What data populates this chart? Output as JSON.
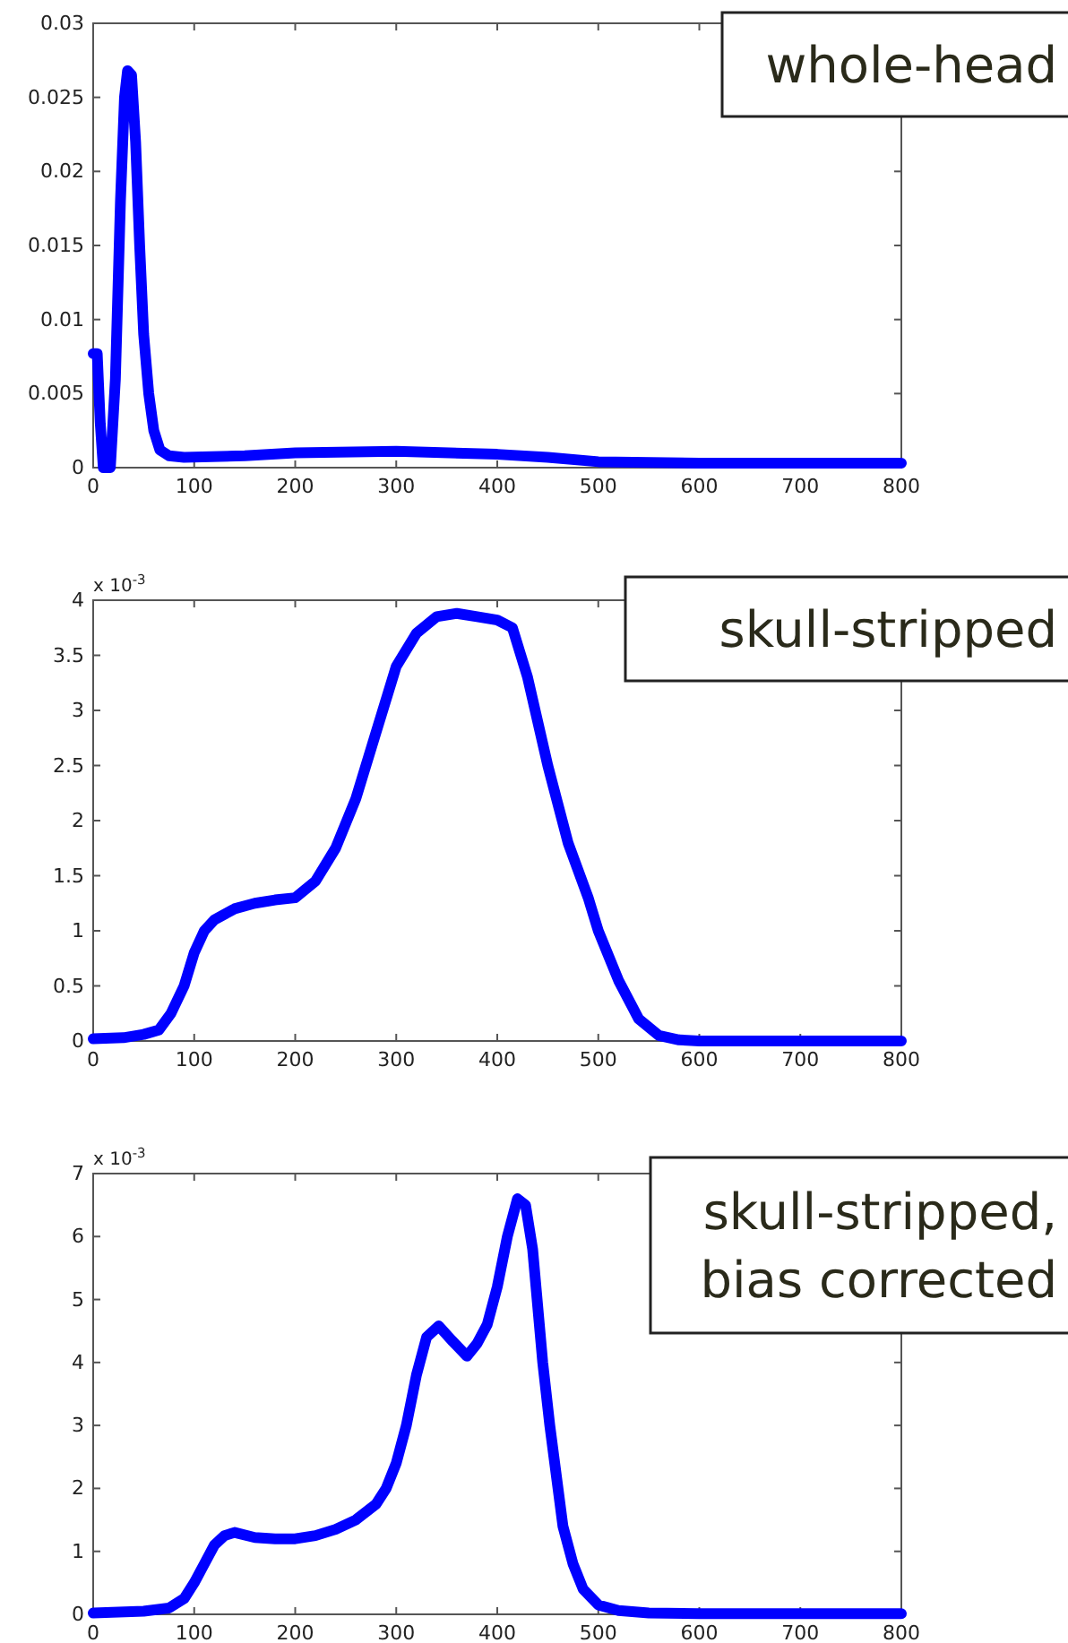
{
  "chart_data": [
    {
      "type": "line",
      "title": "whole-head",
      "xlim": [
        0,
        800
      ],
      "xticks": [
        0,
        100,
        200,
        300,
        400,
        500,
        600,
        700,
        800
      ],
      "ylim": [
        0,
        0.03
      ],
      "yticks": [
        0,
        0.005,
        0.01,
        0.015,
        0.02,
        0.025,
        0.03
      ],
      "series": [
        {
          "color": "#0000ff",
          "x": [
            0,
            4,
            7,
            10,
            17,
            22,
            27,
            31,
            34,
            38,
            42,
            46,
            50,
            55,
            60,
            66,
            75,
            90,
            150,
            200,
            300,
            400,
            450,
            500,
            600,
            800
          ],
          "values": [
            0.0077,
            0.0077,
            0.003,
            0,
            0,
            0.006,
            0.018,
            0.025,
            0.0268,
            0.0265,
            0.022,
            0.015,
            0.009,
            0.005,
            0.0025,
            0.0012,
            0.0008,
            0.0007,
            0.0008,
            0.001,
            0.0011,
            0.0009,
            0.0007,
            0.0004,
            0.0003,
            0.0003
          ]
        }
      ]
    },
    {
      "type": "line",
      "title": "skull-stripped",
      "annotations": [
        "x 10$^{-3}$"
      ],
      "xlim": [
        0,
        800
      ],
      "xticks": [
        0,
        100,
        200,
        300,
        400,
        500,
        600,
        700,
        800
      ],
      "ylim": [
        0,
        4
      ],
      "yticks": [
        0,
        0.5,
        1,
        1.5,
        2,
        2.5,
        3,
        3.5,
        4
      ],
      "series": [
        {
          "color": "#0000ff",
          "x": [
            0,
            30,
            50,
            65,
            77,
            90,
            100,
            110,
            120,
            140,
            160,
            180,
            200,
            220,
            240,
            260,
            280,
            300,
            320,
            340,
            360,
            380,
            400,
            415,
            430,
            450,
            470,
            490,
            500,
            520,
            540,
            560,
            580,
            600,
            800
          ],
          "values": [
            0.02,
            0.03,
            0.06,
            0.1,
            0.25,
            0.5,
            0.8,
            1.0,
            1.1,
            1.2,
            1.25,
            1.28,
            1.3,
            1.45,
            1.75,
            2.2,
            2.8,
            3.4,
            3.7,
            3.85,
            3.88,
            3.85,
            3.82,
            3.75,
            3.3,
            2.5,
            1.8,
            1.3,
            1.0,
            0.55,
            0.2,
            0.05,
            0.01,
            0,
            0
          ]
        }
      ]
    },
    {
      "type": "line",
      "title": "skull-stripped, bias corrected",
      "annotations": [
        "x 10$^{-3}$"
      ],
      "xlim": [
        0,
        800
      ],
      "xticks": [
        0,
        100,
        200,
        300,
        400,
        500,
        600,
        700,
        800
      ],
      "ylim": [
        0,
        7
      ],
      "yticks": [
        0,
        1,
        2,
        3,
        4,
        5,
        6,
        7
      ],
      "series": [
        {
          "color": "#0000ff",
          "x": [
            0,
            50,
            75,
            90,
            100,
            110,
            120,
            130,
            140,
            160,
            180,
            200,
            220,
            240,
            260,
            280,
            290,
            300,
            310,
            320,
            330,
            342,
            355,
            370,
            380,
            390,
            400,
            410,
            420,
            428,
            435,
            445,
            452,
            465,
            475,
            485,
            500,
            520,
            550,
            600,
            800
          ],
          "values": [
            0.02,
            0.05,
            0.1,
            0.25,
            0.5,
            0.8,
            1.1,
            1.25,
            1.3,
            1.22,
            1.2,
            1.2,
            1.25,
            1.35,
            1.5,
            1.75,
            2.0,
            2.4,
            3.0,
            3.8,
            4.4,
            4.58,
            4.35,
            4.1,
            4.3,
            4.6,
            5.2,
            6.0,
            6.6,
            6.5,
            5.8,
            4.0,
            3.0,
            1.4,
            0.8,
            0.4,
            0.15,
            0.06,
            0.02,
            0.01,
            0.01
          ]
        }
      ]
    }
  ]
}
